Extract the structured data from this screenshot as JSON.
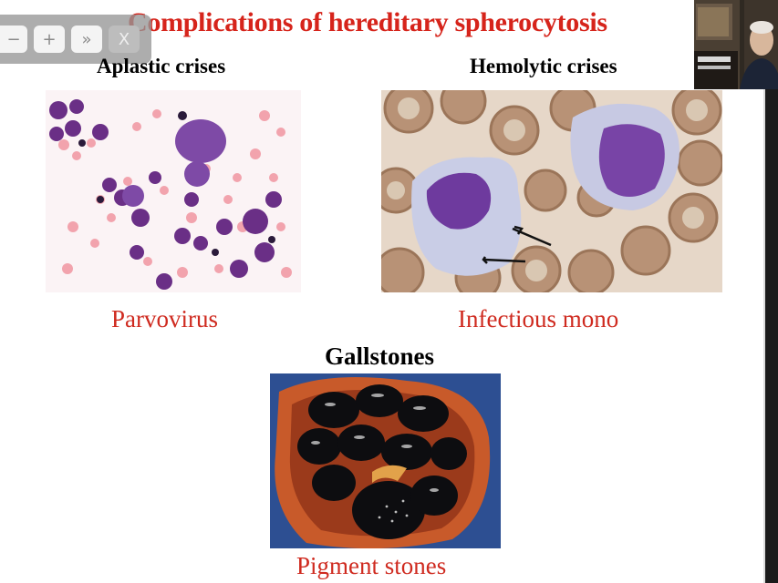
{
  "toolbar": {
    "zoom_out": "−",
    "zoom_in": "+",
    "forward": "»",
    "close": "X"
  },
  "slide": {
    "title": "Complications of hereditary spherocytosis",
    "sections": [
      {
        "heading": "Aplastic crises",
        "caption": "Parvovirus"
      },
      {
        "heading": "Hemolytic crises",
        "caption": "Infectious mono"
      },
      {
        "heading": "Gallstones",
        "caption": "Pigment stones"
      }
    ]
  },
  "colors": {
    "title": "#d6241b",
    "caption": "#cf2a1f",
    "heading": "#000000"
  },
  "icons": {
    "zoom_out": "minus-icon",
    "zoom_in": "plus-icon",
    "forward": "double-chevron-right-icon",
    "close": "close-icon"
  }
}
